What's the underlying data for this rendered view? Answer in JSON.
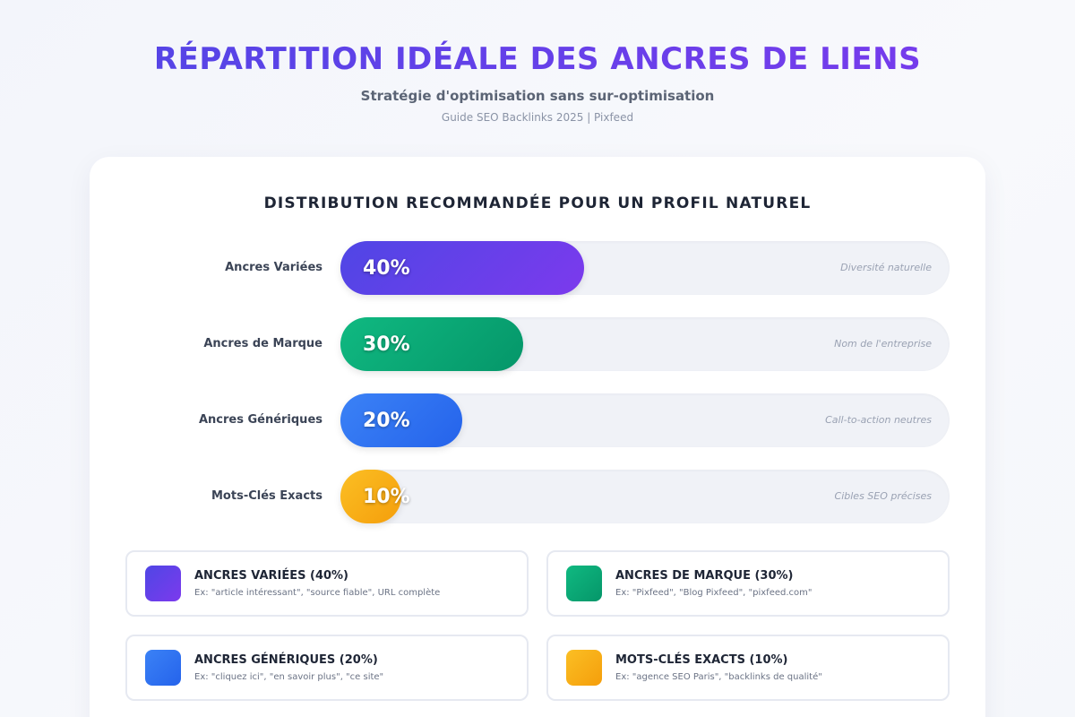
{
  "header": {
    "title": "RÉPARTITION IDÉALE DES ANCRES DE LIENS",
    "subtitle": "Stratégie d'optimisation sans sur-optimisation",
    "credit": "Guide SEO Backlinks 2025 | Pixfeed"
  },
  "chart_data": {
    "type": "bar",
    "orientation": "horizontal",
    "title": "DISTRIBUTION RECOMMANDÉE POUR UN PROFIL NATUREL",
    "xlim": [
      0,
      100
    ],
    "unit": "%",
    "categories": [
      "Ancres Variées",
      "Ancres de Marque",
      "Ancres Génériques",
      "Mots-Clés Exacts"
    ],
    "values": [
      40,
      30,
      20,
      10
    ],
    "value_labels": [
      "40%",
      "30%",
      "20%",
      "10%"
    ],
    "descriptions": [
      "Diversité naturelle",
      "Nom de l'entreprise",
      "Call-to-action neutres",
      "Cibles SEO précises"
    ],
    "colors": [
      [
        "#4f46e5",
        "#7c3aed"
      ],
      [
        "#10b981",
        "#059669"
      ],
      [
        "#3b82f6",
        "#2563eb"
      ],
      [
        "#fbbf24",
        "#f59e0b"
      ]
    ]
  },
  "legend": [
    {
      "title": "ANCRES VARIÉES (40%)",
      "example": "Ex: \"article intéressant\", \"source fiable\", URL complète",
      "color_from": "#4f46e5",
      "color_to": "#7c3aed"
    },
    {
      "title": "ANCRES DE MARQUE (30%)",
      "example": "Ex: \"Pixfeed\", \"Blog Pixfeed\", \"pixfeed.com\"",
      "color_from": "#10b981",
      "color_to": "#059669"
    },
    {
      "title": "ANCRES GÉNÉRIQUES (20%)",
      "example": "Ex: \"cliquez ici\", \"en savoir plus\", \"ce site\"",
      "color_from": "#3b82f6",
      "color_to": "#2563eb"
    },
    {
      "title": "MOTS-CLÉS EXACTS (10%)",
      "example": "Ex: \"agence SEO Paris\", \"backlinks de qualité\"",
      "color_from": "#fbbf24",
      "color_to": "#f59e0b"
    }
  ]
}
